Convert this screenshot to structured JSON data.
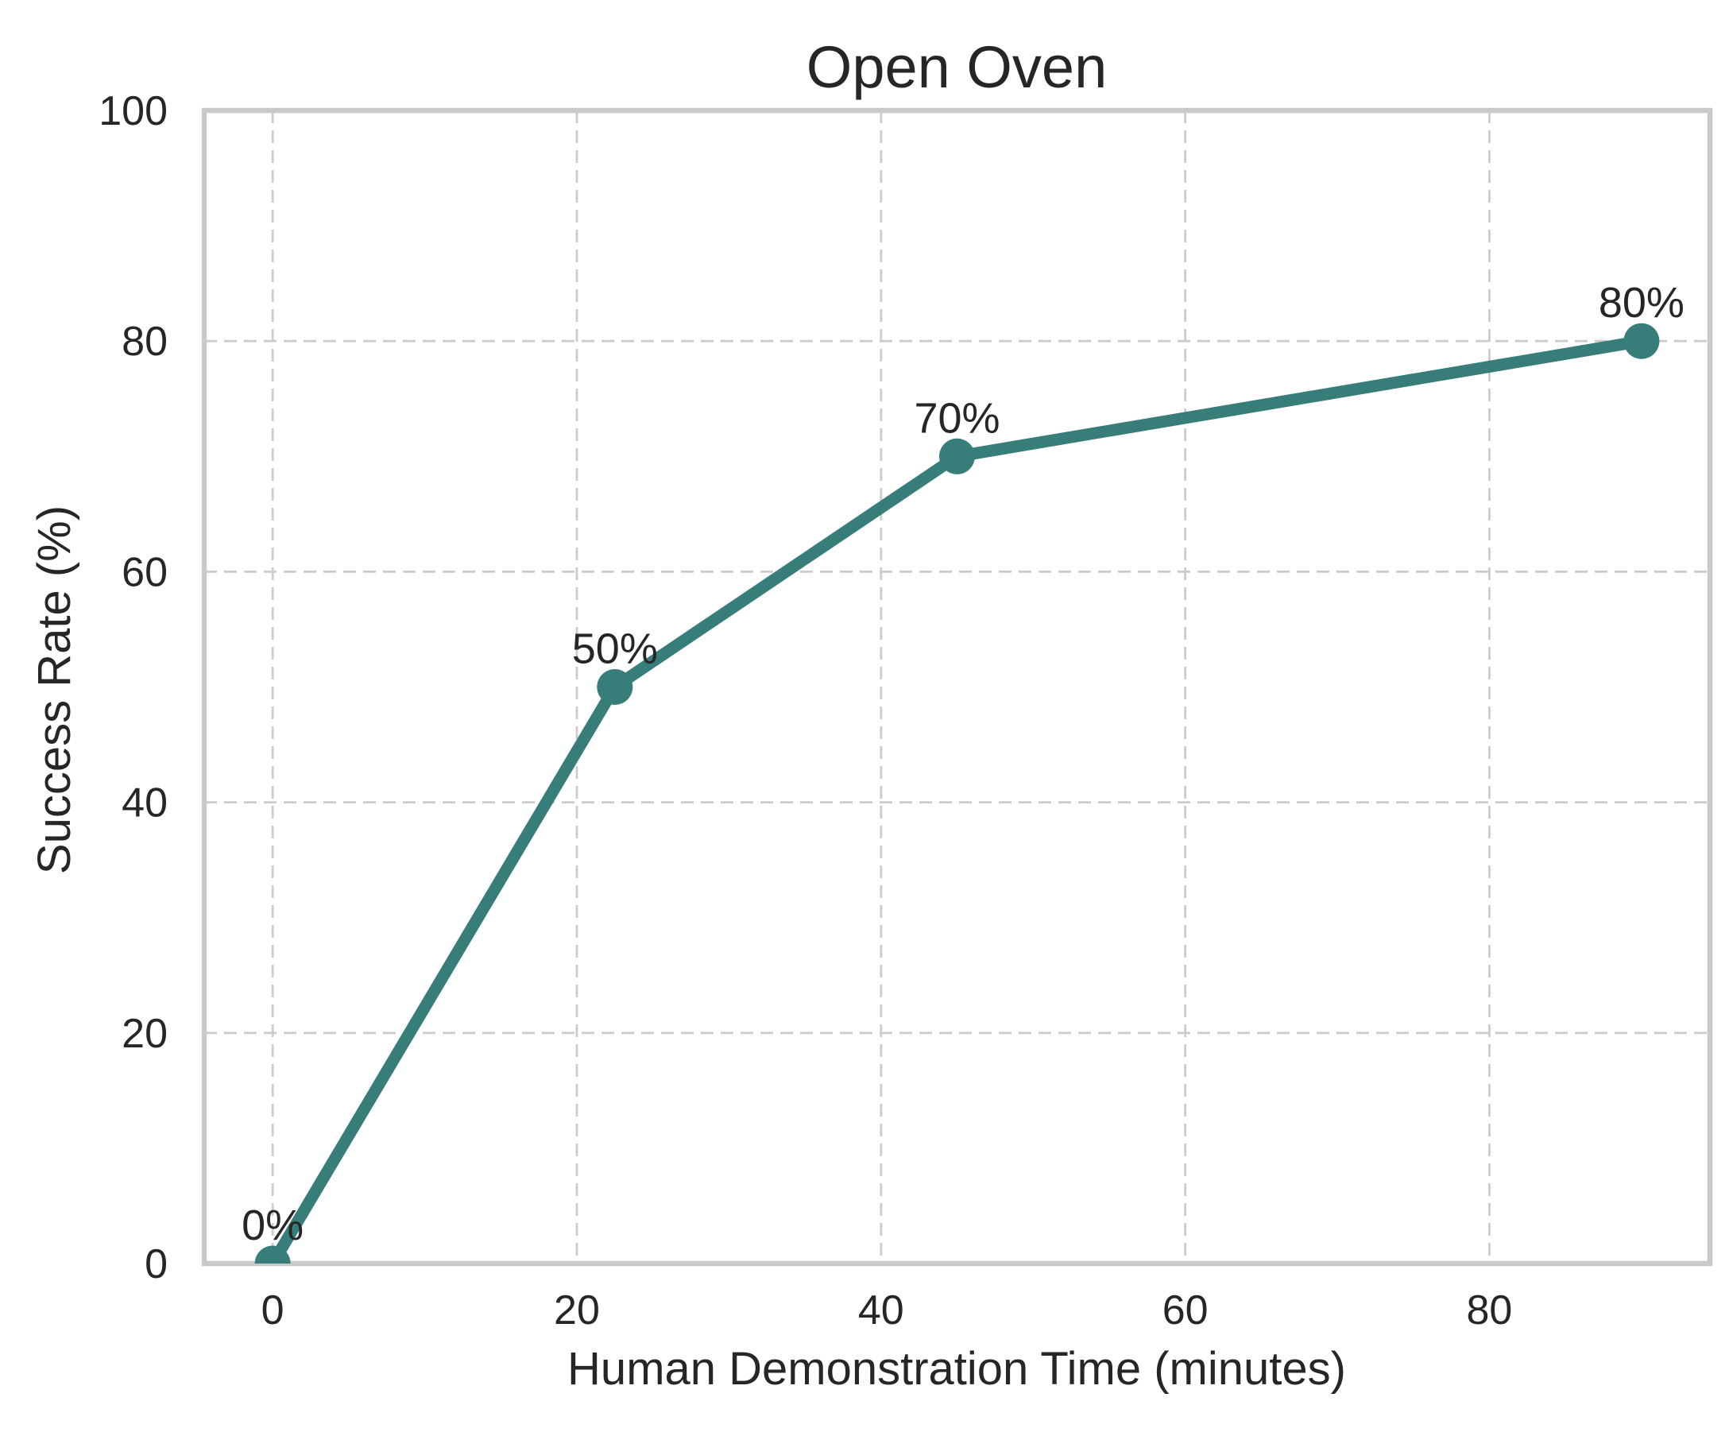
{
  "title": "Open Oven",
  "colors": {
    "line": "#377D7A",
    "grid": "#cccccc",
    "spine": "#c9c9c9",
    "text": "#262626",
    "background": "#ffffff"
  },
  "chart_data": {
    "type": "line",
    "title": "Open Oven",
    "xlabel": "Human Demonstration Time (minutes)",
    "ylabel": "Success Rate (%)",
    "x": [
      0,
      22.5,
      45,
      90
    ],
    "y": [
      0,
      50,
      70,
      80
    ],
    "point_labels": [
      "0%",
      "50%",
      "70%",
      "80%"
    ],
    "xticks": [
      0,
      20,
      40,
      60,
      80
    ],
    "yticks": [
      0,
      20,
      40,
      60,
      80,
      100
    ],
    "xlim": [
      -4.5,
      94.5
    ],
    "ylim": [
      0,
      100
    ],
    "grid": true,
    "grid_style": "dashed",
    "legend": null,
    "line_color": "#377D7A",
    "marker": "circle"
  }
}
